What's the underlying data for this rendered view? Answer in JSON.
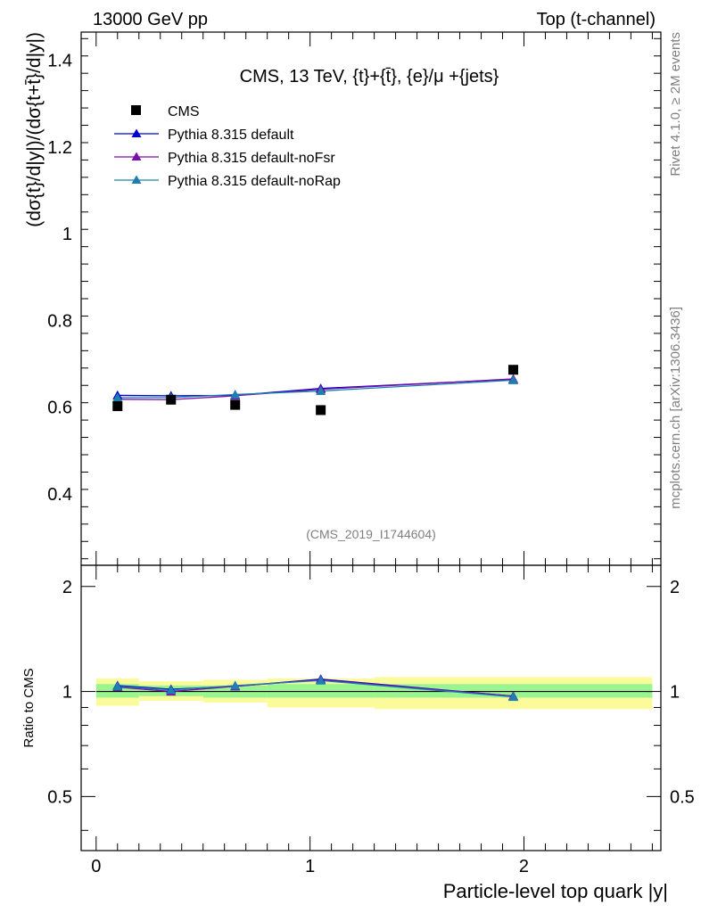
{
  "header": {
    "left": "13000 GeV pp",
    "right": "Top (t-channel)"
  },
  "side_labels": {
    "rivet": "Rivet 4.1.0, ≥ 2M events",
    "mcplots": "mcplots.cern.ch [arXiv:1306.3436]"
  },
  "chart_data": {
    "type": "line",
    "title": "CMS, 13 TeV, {t}+{t̄}, {e}/μ +{jets}",
    "watermark": "(CMS_2019_I1744604)",
    "xlabel": "Particle-level top quark |y|",
    "ylabel": "(dσ{t}/d|y|)/(dσ{t+t̄}/d|y|)",
    "ratio_ylabel": "Ratio to CMS",
    "xlim": [
      -0.07,
      2.64
    ],
    "ylim": [
      0.235,
      1.465
    ],
    "ratio_ylim": [
      0.35,
      2.3
    ],
    "x_ticks": [
      "0",
      "1",
      "2"
    ],
    "y_ticks": [
      "0.4",
      "0.6",
      "0.8",
      "1",
      "1.2",
      "1.4"
    ],
    "ratio_y_ticks": [
      "0.5",
      "1",
      "2"
    ],
    "bins": [
      {
        "lo": 0.0,
        "hi": 0.2
      },
      {
        "lo": 0.2,
        "hi": 0.5
      },
      {
        "lo": 0.5,
        "hi": 0.8
      },
      {
        "lo": 0.8,
        "hi": 1.3
      },
      {
        "lo": 1.3,
        "hi": 2.6
      }
    ],
    "x": [
      0.1,
      0.35,
      0.65,
      1.05,
      1.95
    ],
    "cms": [
      0.602,
      0.617,
      0.605,
      0.593,
      0.686
    ],
    "band_inner": [
      [
        0.96,
        1.05
      ],
      [
        0.97,
        1.04
      ],
      [
        0.96,
        1.04
      ],
      [
        0.96,
        1.05
      ],
      [
        0.96,
        1.05
      ]
    ],
    "band_outer": [
      [
        0.91,
        1.09
      ],
      [
        0.94,
        1.07
      ],
      [
        0.93,
        1.08
      ],
      [
        0.9,
        1.09
      ],
      [
        0.89,
        1.1
      ]
    ],
    "series": [
      {
        "name": "CMS",
        "marker": "square",
        "color": "#000000",
        "values": [
          0.602,
          0.617,
          0.605,
          0.593,
          0.686
        ]
      },
      {
        "name": "Pythia 8.315 default",
        "marker": "triangle",
        "color": "#0000cc",
        "values": [
          0.627,
          0.626,
          0.627,
          0.643,
          0.664
        ],
        "ratio": [
          1.04,
          1.015,
          1.035,
          1.085,
          0.97
        ]
      },
      {
        "name": "Pythia 8.315 default-noFsr",
        "marker": "triangle",
        "color": "#7a0fa8",
        "values": [
          0.618,
          0.617,
          0.626,
          0.641,
          0.665
        ],
        "ratio": [
          1.03,
          1.0,
          1.035,
          1.08,
          0.97
        ]
      },
      {
        "name": "Pythia 8.315 default-noRap",
        "marker": "triangle",
        "color": "#1f80b0",
        "values": [
          0.622,
          0.622,
          0.629,
          0.637,
          0.662
        ],
        "ratio": [
          1.035,
          1.01,
          1.04,
          1.075,
          0.965
        ]
      }
    ],
    "colors": {
      "band_inner": "#99f58f",
      "band_outer": "#fbfb9b",
      "axis": "#000000",
      "watermark": "#7f7f7f"
    }
  }
}
